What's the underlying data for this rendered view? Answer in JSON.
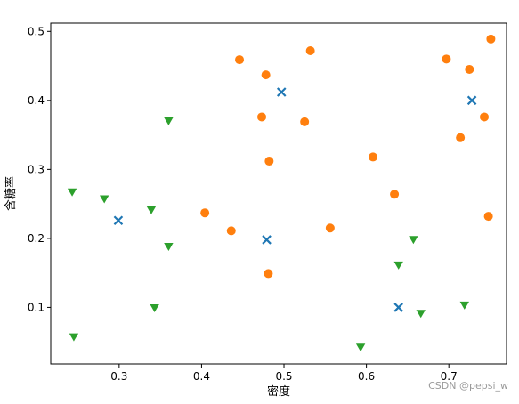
{
  "chart_data": {
    "type": "scatter",
    "xlabel": "密度",
    "ylabel": "含糖率",
    "xlim": [
      0.217,
      0.77
    ],
    "ylim": [
      0.018,
      0.512
    ],
    "xticks": [
      "0.3",
      "0.4",
      "0.5",
      "0.6",
      "0.7"
    ],
    "yticks": [
      "0.1",
      "0.2",
      "0.3",
      "0.4",
      "0.5"
    ],
    "grid": false,
    "series": [
      {
        "marker": "x",
        "color": "#1f77b4",
        "points": [
          [
            0.299,
            0.226
          ],
          [
            0.497,
            0.412
          ],
          [
            0.479,
            0.198
          ],
          [
            0.639,
            0.1
          ],
          [
            0.728,
            0.4
          ]
        ]
      },
      {
        "marker": "circle",
        "color": "#ff7f0e",
        "points": [
          [
            0.446,
            0.459
          ],
          [
            0.478,
            0.437
          ],
          [
            0.532,
            0.472
          ],
          [
            0.473,
            0.376
          ],
          [
            0.525,
            0.369
          ],
          [
            0.482,
            0.312
          ],
          [
            0.404,
            0.237
          ],
          [
            0.436,
            0.211
          ],
          [
            0.481,
            0.149
          ],
          [
            0.556,
            0.215
          ],
          [
            0.608,
            0.318
          ],
          [
            0.634,
            0.264
          ],
          [
            0.697,
            0.46
          ],
          [
            0.725,
            0.445
          ],
          [
            0.751,
            0.489
          ],
          [
            0.714,
            0.346
          ],
          [
            0.743,
            0.376
          ],
          [
            0.748,
            0.232
          ]
        ]
      },
      {
        "marker": "triangle-down",
        "color": "#2ca02c",
        "points": [
          [
            0.243,
            0.267
          ],
          [
            0.282,
            0.257
          ],
          [
            0.36,
            0.37
          ],
          [
            0.339,
            0.241
          ],
          [
            0.36,
            0.188
          ],
          [
            0.343,
            0.099
          ],
          [
            0.245,
            0.057
          ],
          [
            0.593,
            0.042
          ],
          [
            0.639,
            0.161
          ],
          [
            0.657,
            0.198
          ],
          [
            0.666,
            0.091
          ],
          [
            0.719,
            0.103
          ]
        ]
      }
    ]
  },
  "watermark": "CSDN @pepsi_w"
}
